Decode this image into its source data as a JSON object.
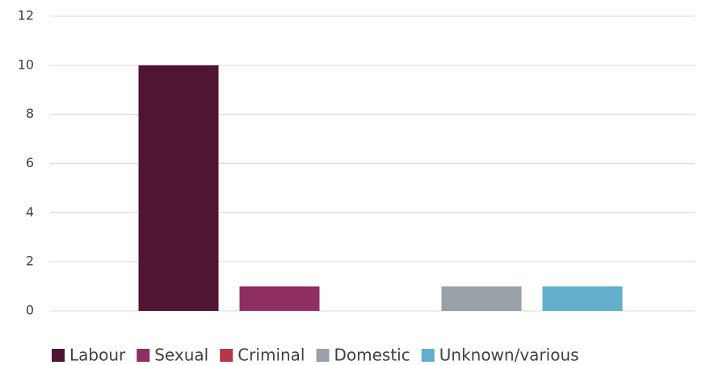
{
  "chart_data": {
    "type": "bar",
    "categories": [
      null
    ],
    "series": [
      {
        "name": "Labour",
        "color": "#4f1532",
        "values": [
          10
        ]
      },
      {
        "name": "Sexual",
        "color": "#8f2e62",
        "values": [
          1
        ]
      },
      {
        "name": "Criminal",
        "color": "#b83447",
        "values": [
          0
        ]
      },
      {
        "name": "Domestic",
        "color": "#9aa0a8",
        "values": [
          1
        ]
      },
      {
        "name": "Unknown/various",
        "color": "#63b0cc",
        "values": [
          1
        ]
      }
    ],
    "ylim": [
      0,
      12
    ],
    "yticks": [
      0,
      2,
      4,
      6,
      8,
      10,
      12
    ],
    "grid": true,
    "legend": "bottom"
  }
}
